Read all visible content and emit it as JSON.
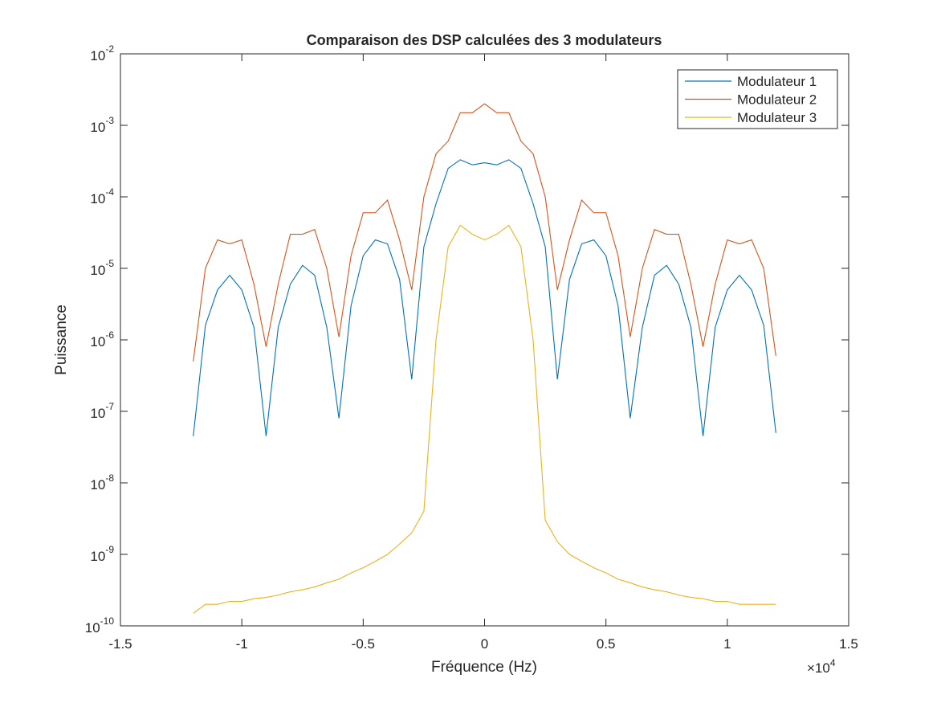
{
  "chart_data": {
    "type": "line",
    "title": "Comparaison des DSP calculées des 3 modulateurs",
    "x_label": "Fréquence (Hz)",
    "y_label": "Puissance",
    "x_multiplier": {
      "base": "×10",
      "exponent": "4"
    },
    "y_scale": "log",
    "legend_position": "northeast",
    "x": [
      -12000,
      -11500,
      -11000,
      -10500,
      -10000,
      -9500,
      -9000,
      -8500,
      -8000,
      -7500,
      -7000,
      -6500,
      -6000,
      -5500,
      -5000,
      -4500,
      -4000,
      -3500,
      -3000,
      -2500,
      -2000,
      -1500,
      -1000,
      -500,
      0,
      500,
      1000,
      1500,
      2000,
      2500,
      3000,
      3500,
      4000,
      4500,
      5000,
      5500,
      6000,
      6500,
      7000,
      7500,
      8000,
      8500,
      9000,
      9500,
      10000,
      10500,
      11000,
      11500,
      12000
    ],
    "series": [
      {
        "name": "Modulateur 1",
        "color": "#0072bd",
        "values": [
          4.5e-08,
          1.6e-06,
          5e-06,
          8e-06,
          5e-06,
          1.5e-06,
          4.5e-08,
          1.5e-06,
          6e-06,
          1.1e-05,
          8e-06,
          1.5e-06,
          8e-08,
          3e-06,
          1.5e-05,
          2.5e-05,
          2.2e-05,
          7e-06,
          2.8e-07,
          2e-05,
          8e-05,
          0.00025,
          0.00033,
          0.00028,
          0.0003,
          0.00028,
          0.00033,
          0.00025,
          8e-05,
          2e-05,
          2.8e-07,
          7e-06,
          2.2e-05,
          2.5e-05,
          1.5e-05,
          3e-06,
          8e-08,
          1.5e-06,
          8e-06,
          1.1e-05,
          6e-06,
          1.5e-06,
          4.5e-08,
          1.5e-06,
          5e-06,
          8e-06,
          5e-06,
          1.6e-06,
          5e-08
        ]
      },
      {
        "name": "Modulateur 2",
        "color": "#d95319",
        "values": [
          5e-07,
          1e-05,
          2.5e-05,
          2.2e-05,
          2.5e-05,
          6e-06,
          8e-07,
          6e-06,
          3e-05,
          3e-05,
          3.5e-05,
          1e-05,
          1.1e-06,
          1.5e-05,
          6e-05,
          6e-05,
          9e-05,
          2.5e-05,
          5e-06,
          0.0001,
          0.0004,
          0.0006,
          0.0015,
          0.0015,
          0.002,
          0.0015,
          0.0015,
          0.0006,
          0.0004,
          0.0001,
          5e-06,
          2.5e-05,
          9e-05,
          6e-05,
          6e-05,
          1.5e-05,
          1.1e-06,
          1e-05,
          3.5e-05,
          3e-05,
          3e-05,
          6e-06,
          8e-07,
          6e-06,
          2.5e-05,
          2.2e-05,
          2.5e-05,
          1e-05,
          6e-07
        ]
      },
      {
        "name": "Modulateur 3",
        "color": "#edb120",
        "values": [
          1.5e-10,
          2e-10,
          2e-10,
          2.2e-10,
          2.2e-10,
          2.4e-10,
          2.5e-10,
          2.7e-10,
          3e-10,
          3.2e-10,
          3.5e-10,
          4e-10,
          4.5e-10,
          5.5e-10,
          6.5e-10,
          8e-10,
          1e-09,
          1.4e-09,
          2e-09,
          4e-09,
          1e-06,
          2e-05,
          4e-05,
          3e-05,
          2.5e-05,
          3e-05,
          4e-05,
          2e-05,
          1e-06,
          3e-09,
          1.5e-09,
          1e-09,
          8e-10,
          6.5e-10,
          5.5e-10,
          4.5e-10,
          4e-10,
          3.5e-10,
          3.2e-10,
          3e-10,
          2.7e-10,
          2.5e-10,
          2.4e-10,
          2.2e-10,
          2.2e-10,
          2e-10,
          2e-10,
          2e-10,
          2e-10
        ]
      }
    ],
    "xlim": [
      -15000,
      15000
    ],
    "xticks": [
      {
        "value": -15000,
        "label": "-1.5"
      },
      {
        "value": -10000,
        "label": "-1"
      },
      {
        "value": -5000,
        "label": "-0.5"
      },
      0,
      {
        "value": 5000,
        "label": "0.5"
      },
      {
        "value": 10000,
        "label": "1"
      },
      {
        "value": 15000,
        "label": "1.5"
      }
    ],
    "ylim": [
      1e-10,
      0.01
    ],
    "yticks": [
      {
        "value": 1e-10,
        "label": "10",
        "exponent": "-10"
      },
      {
        "value": 1e-09,
        "label": "10",
        "exponent": "-9"
      },
      {
        "value": 1e-08,
        "label": "10",
        "exponent": "-8"
      },
      {
        "value": 1e-07,
        "label": "10",
        "exponent": "-7"
      },
      {
        "value": 1e-06,
        "label": "10",
        "exponent": "-6"
      },
      {
        "value": 1e-05,
        "label": "10",
        "exponent": "-5"
      },
      {
        "value": 0.0001,
        "label": "10",
        "exponent": "-4"
      },
      {
        "value": 0.001,
        "label": "10",
        "exponent": "-3"
      },
      {
        "value": 0.01,
        "label": "10",
        "exponent": "-2"
      }
    ]
  }
}
